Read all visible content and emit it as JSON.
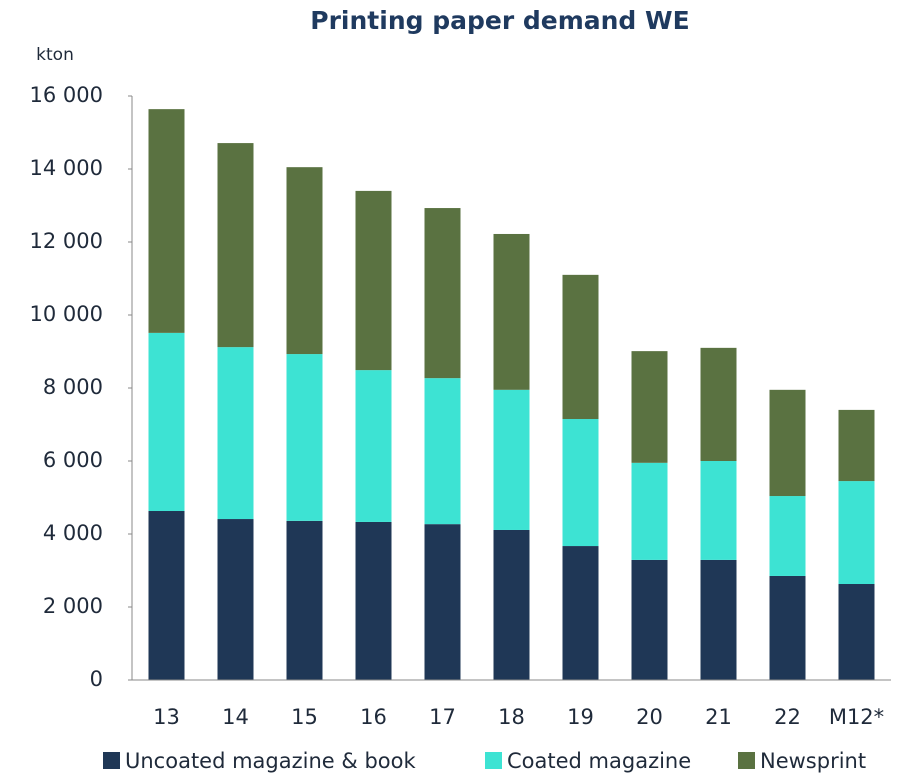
{
  "chart_data": {
    "type": "stacked_bar",
    "title": "Printing paper demand WE",
    "y_axis_label": "kton",
    "categories": [
      "13",
      "14",
      "15",
      "16",
      "17",
      "18",
      "19",
      "20",
      "21",
      "22",
      "M12*"
    ],
    "series": [
      {
        "name": "Uncoated magazine & book",
        "color": "#1f3756",
        "values": [
          4630,
          4410,
          4360,
          4330,
          4270,
          4110,
          3670,
          3290,
          3290,
          2850,
          2630
        ]
      },
      {
        "name": "Coated magazine",
        "color": "#3de3d3",
        "values": [
          4880,
          4710,
          4570,
          4160,
          4000,
          3840,
          3480,
          2660,
          2710,
          2190,
          2820
        ]
      },
      {
        "name": "Newsprint",
        "color": "#5a7241",
        "values": [
          6130,
          5590,
          5120,
          4910,
          4660,
          4270,
          3950,
          3060,
          3100,
          2910,
          1950
        ]
      }
    ],
    "ylim": [
      0,
      16000
    ],
    "yticks": [
      0,
      {
        "value": 2000,
        "label": "2 000"
      },
      {
        "value": 4000,
        "label": "4 000"
      },
      {
        "value": 6000,
        "label": "6 000"
      },
      {
        "value": 8000,
        "label": "8 000"
      },
      {
        "value": 10000,
        "label": "10 000"
      },
      {
        "value": 12000,
        "label": "12 000"
      },
      {
        "value": 14000,
        "label": "14 000"
      },
      {
        "value": 16000,
        "label": "16 000"
      }
    ],
    "grid": false,
    "legend": "bottom"
  }
}
